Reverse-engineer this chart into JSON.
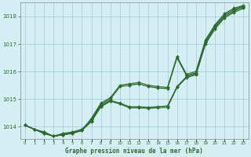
{
  "xlabel": "Graphe pression niveau de la mer (hPa)",
  "hours": [
    0,
    1,
    2,
    3,
    4,
    5,
    6,
    7,
    8,
    9,
    10,
    11,
    12,
    13,
    14,
    15,
    16,
    17,
    18,
    19,
    20,
    21,
    22,
    23
  ],
  "line1": [
    1014.05,
    1013.9,
    1013.8,
    1013.65,
    1013.7,
    1013.75,
    1013.85,
    1014.3,
    1014.85,
    1015.05,
    1015.5,
    1015.55,
    1015.6,
    1015.5,
    1015.45,
    1015.42,
    1016.55,
    1015.9,
    1016.0,
    1017.15,
    1017.7,
    1018.1,
    1018.3,
    1018.4
  ],
  "line2": [
    1014.05,
    1013.9,
    1013.8,
    1013.65,
    1013.75,
    1013.8,
    1013.9,
    1014.25,
    1014.8,
    1015.0,
    1015.45,
    1015.5,
    1015.55,
    1015.45,
    1015.4,
    1015.38,
    1016.5,
    1015.85,
    1015.95,
    1017.1,
    1017.65,
    1018.05,
    1018.25,
    1018.38
  ],
  "line3": [
    1014.05,
    1013.9,
    1013.75,
    1013.65,
    1013.7,
    1013.78,
    1013.88,
    1014.2,
    1014.75,
    1014.95,
    1014.85,
    1014.72,
    1014.72,
    1014.7,
    1014.72,
    1014.75,
    1015.45,
    1015.82,
    1015.92,
    1017.05,
    1017.6,
    1018.0,
    1018.2,
    1018.35
  ],
  "line4": [
    1014.05,
    1013.9,
    1013.75,
    1013.65,
    1013.7,
    1013.76,
    1013.86,
    1014.18,
    1014.72,
    1014.92,
    1014.82,
    1014.68,
    1014.68,
    1014.66,
    1014.68,
    1014.7,
    1015.42,
    1015.78,
    1015.88,
    1017.0,
    1017.55,
    1017.95,
    1018.15,
    1018.3
  ],
  "line_color": "#2d6a2d",
  "bg_color": "#d4eef4",
  "grid_color": "#aacfdf",
  "ylim": [
    1013.55,
    1018.5
  ],
  "yticks": [
    1014,
    1015,
    1016,
    1017,
    1018
  ],
  "xticks": [
    0,
    1,
    2,
    3,
    4,
    5,
    6,
    7,
    8,
    9,
    10,
    11,
    12,
    13,
    14,
    15,
    16,
    17,
    18,
    19,
    20,
    21,
    22,
    23
  ],
  "marker_size": 2.0,
  "linewidth": 0.9
}
